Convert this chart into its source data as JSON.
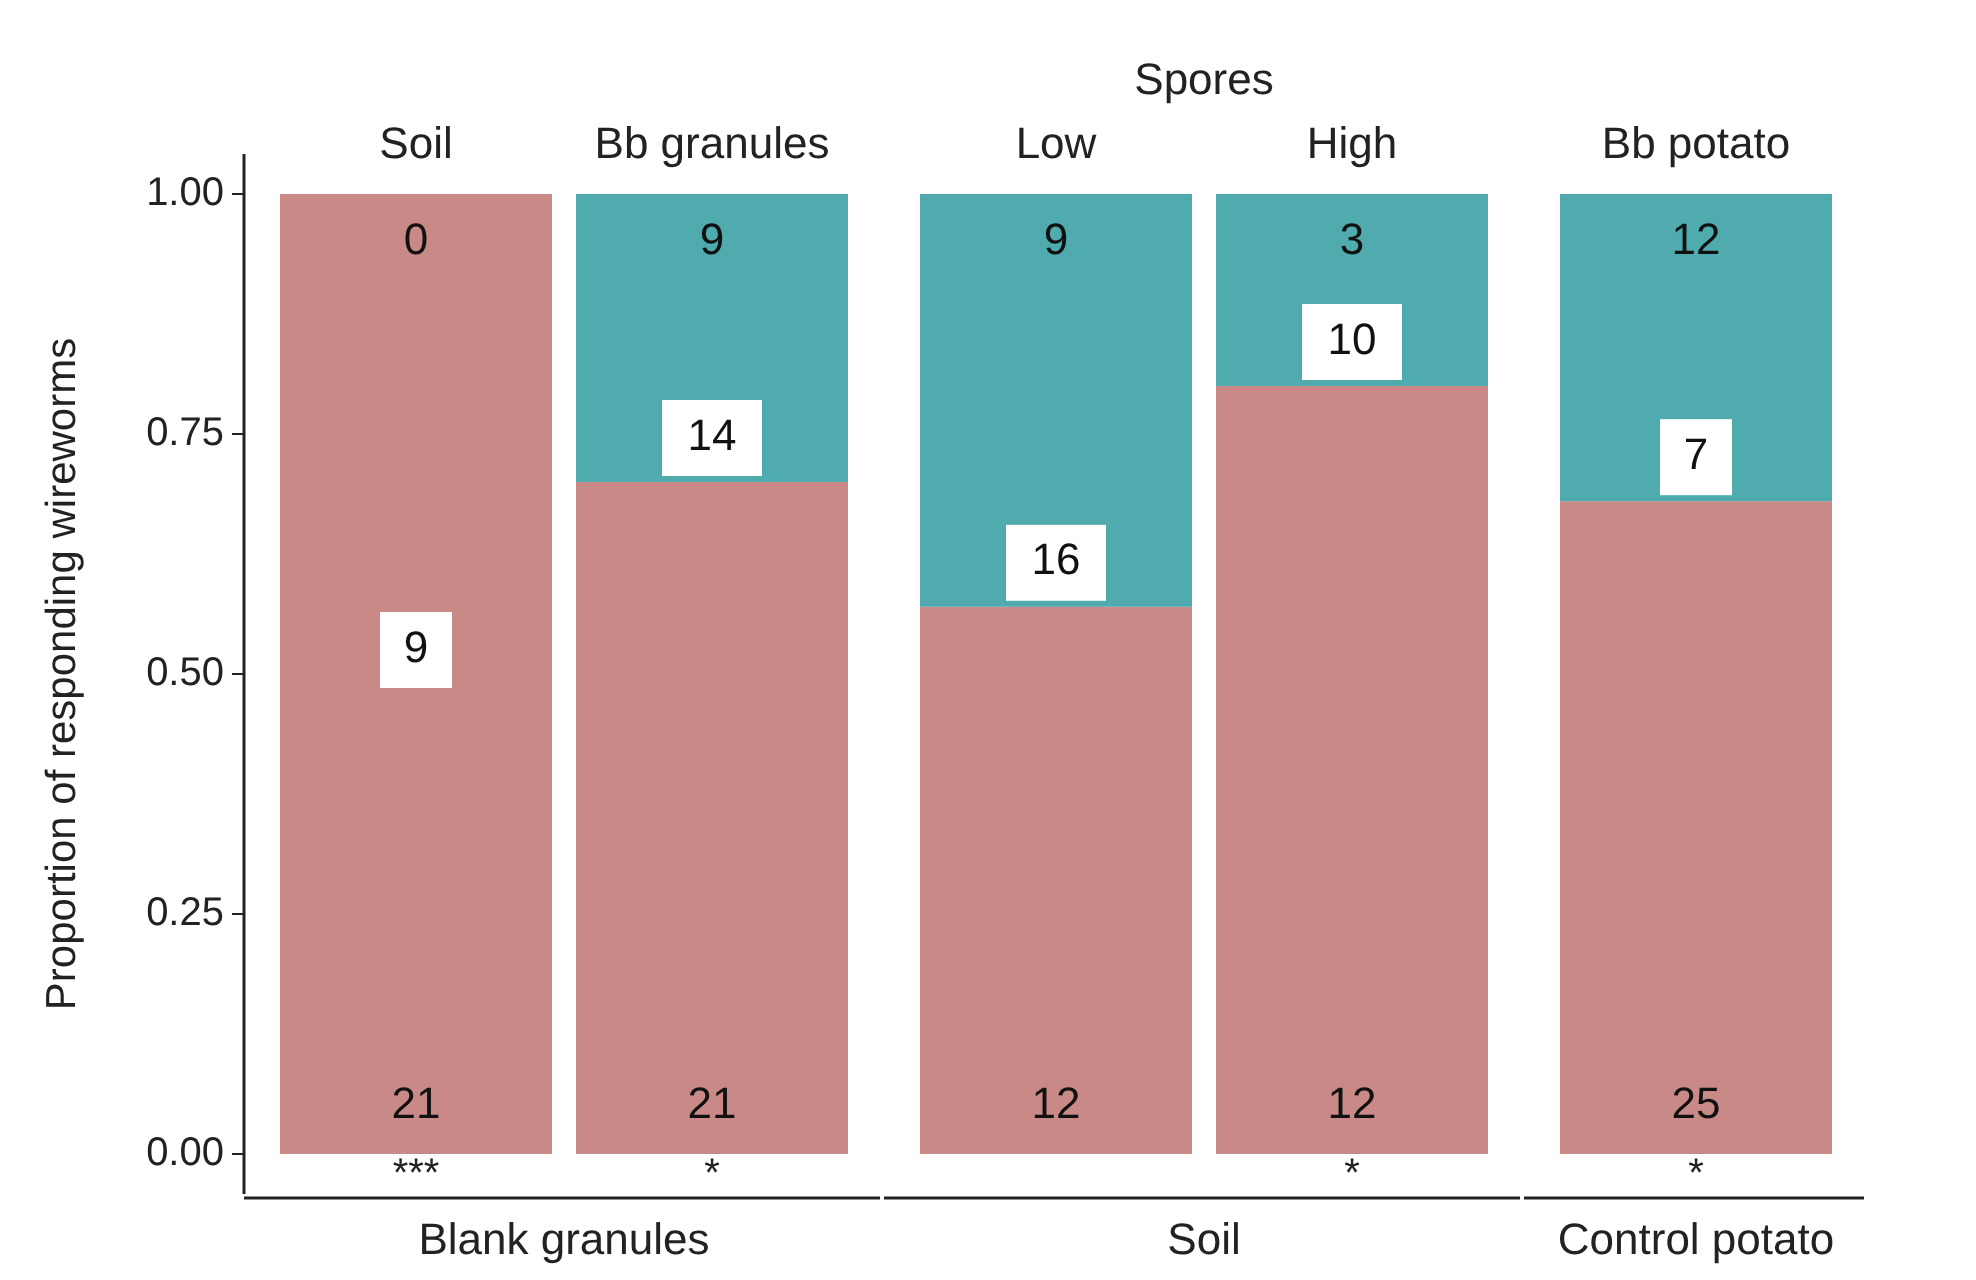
{
  "chart_data": {
    "type": "bar",
    "stacked": true,
    "ylabel": "Proportion of responding wireworms",
    "categories": [
      "Soil",
      "Bb granules",
      "Low",
      "High",
      "Bb potato"
    ],
    "series": [
      {
        "color": "#c98a87",
        "values": [
          1.0,
          0.7,
          0.57,
          0.8,
          0.68
        ]
      },
      {
        "color": "#4fabae",
        "values": [
          0,
          0.3,
          0.43,
          0.2,
          0.32
        ]
      }
    ],
    "ylim": [
      0,
      1
    ],
    "yticks": [
      {
        "value": 0,
        "label": "0.00"
      },
      {
        "value": 0.25,
        "label": "0.25"
      },
      {
        "value": 0.5,
        "label": "0.50"
      },
      {
        "value": 0.75,
        "label": "0.75"
      },
      {
        "value": 1,
        "label": "1.00"
      }
    ],
    "grid": false,
    "annotations": [
      "Spores",
      "Blank granules",
      "Soil",
      "Control potato",
      "0",
      "9",
      "9",
      "3",
      "12",
      "9",
      "14",
      "16",
      "10",
      "7",
      "21",
      "21",
      "12",
      "12",
      "25",
      "***",
      "*",
      "*",
      "*"
    ]
  }
}
